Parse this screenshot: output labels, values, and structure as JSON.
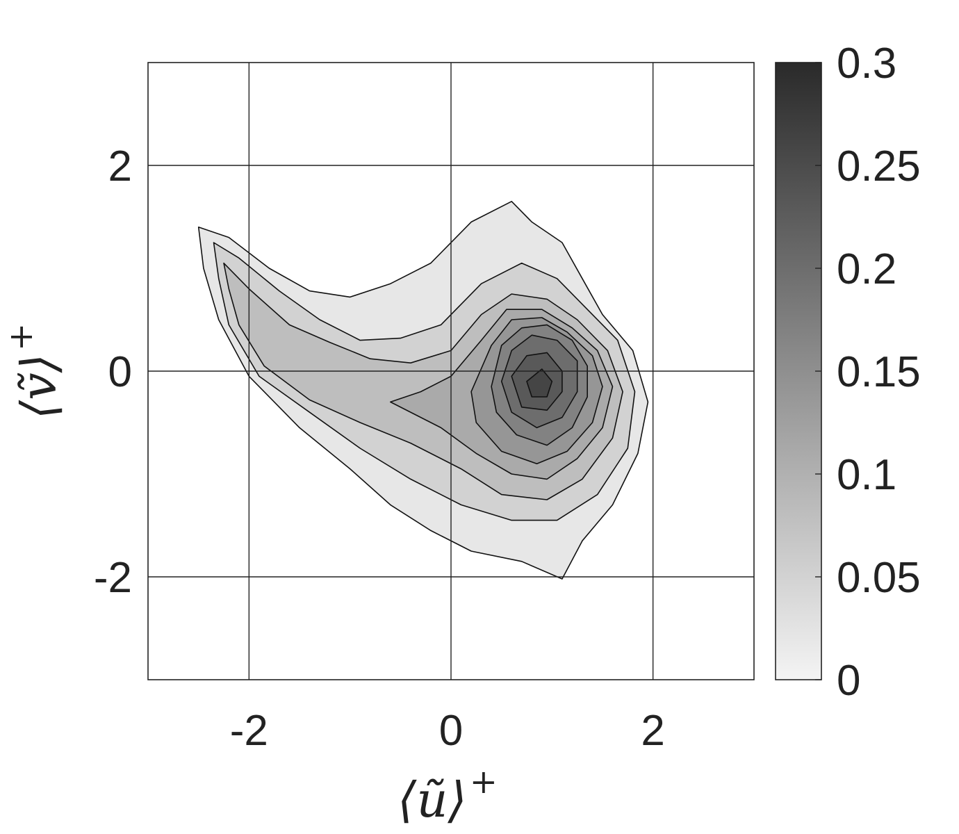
{
  "chart_data": {
    "type": "heatmap",
    "subtype": "filled-contour",
    "title": "",
    "xlabel": "⟨ũ⟩⁺",
    "ylabel": "⟨ṽ⟩⁺",
    "xlabel_main": "⟨ũ⟩",
    "ylabel_main": "⟨ṽ⟩",
    "label_sup": "+",
    "xlim": [
      -3,
      3
    ],
    "ylim": [
      -3,
      3
    ],
    "x_ticks": [
      -2,
      0,
      2
    ],
    "y_ticks": [
      -2,
      0,
      2
    ],
    "x_tick_labels": [
      "-2",
      "0",
      "2"
    ],
    "y_tick_labels": [
      "-2",
      "0",
      "2"
    ],
    "grid": true,
    "colormap": "gray",
    "colormap_colors": [
      "#f4f4f4",
      "#2a2a2a"
    ],
    "colorbar": {
      "range": [
        0,
        0.3
      ],
      "ticks": [
        0,
        0.05,
        0.1,
        0.15,
        0.2,
        0.25,
        0.3
      ],
      "tick_labels": [
        "0",
        "0.05",
        "0.1",
        "0.15",
        "0.2",
        "0.25",
        "0.3"
      ],
      "placement": "right"
    },
    "contour_levels": [
      0.02,
      0.05,
      0.08,
      0.11,
      0.14,
      0.17,
      0.2,
      0.23,
      0.26
    ],
    "contour_regions": [
      {
        "level": 0.02,
        "points": [
          [
            -2.5,
            1.4
          ],
          [
            -2.2,
            1.3
          ],
          [
            -1.8,
            1.0
          ],
          [
            -1.4,
            0.78
          ],
          [
            -1.0,
            0.72
          ],
          [
            -0.6,
            0.85
          ],
          [
            -0.2,
            1.05
          ],
          [
            0.2,
            1.45
          ],
          [
            0.6,
            1.65
          ],
          [
            0.8,
            1.45
          ],
          [
            1.1,
            1.25
          ],
          [
            1.3,
            0.9
          ],
          [
            1.5,
            0.55
          ],
          [
            1.8,
            0.2
          ],
          [
            1.95,
            -0.3
          ],
          [
            1.85,
            -0.8
          ],
          [
            1.6,
            -1.3
          ],
          [
            1.3,
            -1.65
          ],
          [
            1.1,
            -2.02
          ],
          [
            0.7,
            -1.85
          ],
          [
            0.2,
            -1.75
          ],
          [
            -0.2,
            -1.55
          ],
          [
            -0.6,
            -1.3
          ],
          [
            -1.0,
            -0.95
          ],
          [
            -1.5,
            -0.55
          ],
          [
            -2.0,
            -0.05
          ],
          [
            -2.3,
            0.5
          ],
          [
            -2.45,
            1.0
          ]
        ]
      },
      {
        "level": 0.05,
        "points": [
          [
            -2.35,
            1.25
          ],
          [
            -2.1,
            1.1
          ],
          [
            -1.7,
            0.78
          ],
          [
            -1.3,
            0.5
          ],
          [
            -0.9,
            0.3
          ],
          [
            -0.5,
            0.32
          ],
          [
            -0.1,
            0.45
          ],
          [
            0.3,
            0.85
          ],
          [
            0.7,
            1.05
          ],
          [
            1.05,
            0.9
          ],
          [
            1.35,
            0.6
          ],
          [
            1.65,
            0.3
          ],
          [
            1.82,
            -0.2
          ],
          [
            1.75,
            -0.75
          ],
          [
            1.45,
            -1.2
          ],
          [
            1.05,
            -1.45
          ],
          [
            0.6,
            -1.45
          ],
          [
            0.1,
            -1.3
          ],
          [
            -0.4,
            -1.05
          ],
          [
            -0.9,
            -0.75
          ],
          [
            -1.4,
            -0.4
          ],
          [
            -1.9,
            -0.05
          ],
          [
            -2.2,
            0.45
          ],
          [
            -2.3,
            0.9
          ]
        ]
      },
      {
        "level": 0.08,
        "points": [
          [
            -2.25,
            1.05
          ],
          [
            -2.0,
            0.8
          ],
          [
            -1.6,
            0.45
          ],
          [
            -1.2,
            0.28
          ],
          [
            -0.8,
            0.12
          ],
          [
            -0.4,
            0.08
          ],
          [
            0.0,
            0.2
          ],
          [
            0.3,
            0.55
          ],
          [
            0.6,
            0.75
          ],
          [
            0.95,
            0.7
          ],
          [
            1.25,
            0.5
          ],
          [
            1.55,
            0.2
          ],
          [
            1.7,
            -0.2
          ],
          [
            1.6,
            -0.65
          ],
          [
            1.3,
            -1.05
          ],
          [
            0.95,
            -1.25
          ],
          [
            0.5,
            -1.2
          ],
          [
            0.1,
            -0.95
          ],
          [
            -0.4,
            -0.7
          ],
          [
            -0.9,
            -0.5
          ],
          [
            -1.4,
            -0.28
          ],
          [
            -1.85,
            0.05
          ],
          [
            -2.1,
            0.45
          ],
          [
            -2.2,
            0.8
          ]
        ]
      },
      {
        "level": 0.11,
        "points": [
          [
            -0.6,
            -0.3
          ],
          [
            -0.3,
            -0.2
          ],
          [
            0.0,
            -0.05
          ],
          [
            0.3,
            0.3
          ],
          [
            0.55,
            0.6
          ],
          [
            0.9,
            0.6
          ],
          [
            1.2,
            0.42
          ],
          [
            1.45,
            0.2
          ],
          [
            1.6,
            -0.15
          ],
          [
            1.5,
            -0.55
          ],
          [
            1.25,
            -0.85
          ],
          [
            0.95,
            -1.05
          ],
          [
            0.6,
            -1.0
          ],
          [
            0.25,
            -0.8
          ],
          [
            -0.1,
            -0.55
          ]
        ]
      },
      {
        "level": 0.14,
        "points": [
          [
            0.2,
            -0.2
          ],
          [
            0.4,
            0.25
          ],
          [
            0.6,
            0.5
          ],
          [
            0.9,
            0.52
          ],
          [
            1.15,
            0.38
          ],
          [
            1.4,
            0.15
          ],
          [
            1.5,
            -0.15
          ],
          [
            1.4,
            -0.5
          ],
          [
            1.15,
            -0.78
          ],
          [
            0.85,
            -0.9
          ],
          [
            0.5,
            -0.78
          ],
          [
            0.25,
            -0.5
          ]
        ]
      },
      {
        "level": 0.17,
        "points": [
          [
            0.4,
            -0.15
          ],
          [
            0.5,
            0.25
          ],
          [
            0.7,
            0.42
          ],
          [
            0.95,
            0.45
          ],
          [
            1.2,
            0.3
          ],
          [
            1.35,
            0.05
          ],
          [
            1.35,
            -0.25
          ],
          [
            1.2,
            -0.55
          ],
          [
            0.95,
            -0.72
          ],
          [
            0.65,
            -0.62
          ],
          [
            0.45,
            -0.4
          ]
        ]
      },
      {
        "level": 0.2,
        "points": [
          [
            0.5,
            -0.1
          ],
          [
            0.6,
            0.2
          ],
          [
            0.8,
            0.35
          ],
          [
            1.05,
            0.3
          ],
          [
            1.25,
            0.1
          ],
          [
            1.25,
            -0.2
          ],
          [
            1.1,
            -0.45
          ],
          [
            0.85,
            -0.55
          ],
          [
            0.6,
            -0.4
          ]
        ]
      },
      {
        "level": 0.23,
        "points": [
          [
            0.6,
            -0.05
          ],
          [
            0.75,
            0.15
          ],
          [
            0.95,
            0.18
          ],
          [
            1.1,
            0.0
          ],
          [
            1.1,
            -0.2
          ],
          [
            0.95,
            -0.38
          ],
          [
            0.7,
            -0.35
          ]
        ]
      },
      {
        "level": 0.26,
        "points": [
          [
            0.75,
            -0.1
          ],
          [
            0.9,
            0.02
          ],
          [
            1.0,
            -0.1
          ],
          [
            0.95,
            -0.25
          ],
          [
            0.8,
            -0.25
          ]
        ]
      }
    ]
  }
}
